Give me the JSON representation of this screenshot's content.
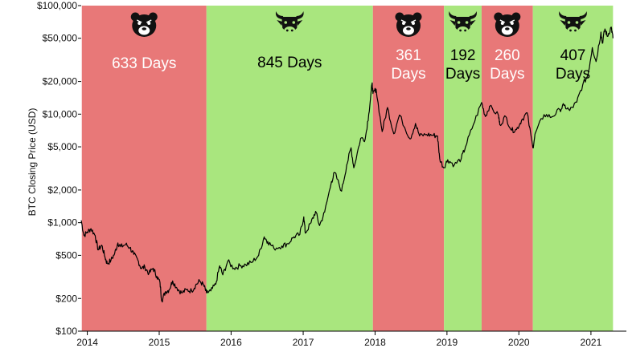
{
  "chart_data": {
    "type": "line",
    "title": "",
    "xlabel": "",
    "ylabel": "BTC Closing Price (USD)",
    "y_scale": "log",
    "ylim": [
      100,
      100000
    ],
    "xlim": [
      "2013-12-01",
      "2021-06-30"
    ],
    "y_ticks": [
      {
        "value": 100,
        "label": "$100"
      },
      {
        "value": 200,
        "label": "$200"
      },
      {
        "value": 500,
        "label": "$500"
      },
      {
        "value": 1000,
        "label": "$1,000"
      },
      {
        "value": 2000,
        "label": "$2,000"
      },
      {
        "value": 5000,
        "label": "$5,000"
      },
      {
        "value": 10000,
        "label": "$10,000"
      },
      {
        "value": 20000,
        "label": "$20,000"
      },
      {
        "value": 50000,
        "label": "$50,000"
      },
      {
        "value": 100000,
        "label": "$100,000"
      }
    ],
    "x_ticks": [
      {
        "date": "2014-01-01",
        "label": "2014"
      },
      {
        "date": "2015-01-01",
        "label": "2015"
      },
      {
        "date": "2016-01-01",
        "label": "2016"
      },
      {
        "date": "2017-01-01",
        "label": "2017"
      },
      {
        "date": "2018-01-01",
        "label": "2018"
      },
      {
        "date": "2019-01-01",
        "label": "2019"
      },
      {
        "date": "2020-01-01",
        "label": "2020"
      },
      {
        "date": "2021-01-01",
        "label": "2021"
      }
    ],
    "phases": [
      {
        "kind": "bear",
        "start": "2013-12-04",
        "end": "2015-08-29",
        "label_lines": [
          "633 Days"
        ],
        "color": "#e87878",
        "icon": "bear-face-icon"
      },
      {
        "kind": "bull",
        "start": "2015-08-29",
        "end": "2017-12-21",
        "label_lines": [
          "845 Days"
        ],
        "color": "#a9e67e",
        "icon": "bull-head-icon"
      },
      {
        "kind": "bear",
        "start": "2017-12-21",
        "end": "2018-12-17",
        "label_lines": [
          "361",
          "Days"
        ],
        "color": "#e87878",
        "icon": "bear-face-icon"
      },
      {
        "kind": "bull",
        "start": "2018-12-17",
        "end": "2019-06-26",
        "label_lines": [
          "192",
          "Days"
        ],
        "color": "#a9e67e",
        "icon": "bull-head-icon"
      },
      {
        "kind": "bear",
        "start": "2019-06-26",
        "end": "2020-03-12",
        "label_lines": [
          "260",
          "Days"
        ],
        "color": "#e87878",
        "icon": "bear-face-icon"
      },
      {
        "kind": "bull",
        "start": "2020-03-12",
        "end": "2021-04-23",
        "label_lines": [
          "407",
          "Days"
        ],
        "color": "#a9e67e",
        "icon": "bull-head-icon"
      }
    ],
    "series": [
      {
        "line_color": "#000000",
        "points": [
          [
            "2013-12-01",
            1050
          ],
          [
            "2013-12-15",
            760
          ],
          [
            "2014-01-01",
            820
          ],
          [
            "2014-01-20",
            880
          ],
          [
            "2014-02-10",
            760
          ],
          [
            "2014-02-25",
            560
          ],
          [
            "2014-03-15",
            620
          ],
          [
            "2014-04-01",
            480
          ],
          [
            "2014-04-12",
            420
          ],
          [
            "2014-05-01",
            450
          ],
          [
            "2014-05-20",
            520
          ],
          [
            "2014-06-05",
            650
          ],
          [
            "2014-06-20",
            600
          ],
          [
            "2014-07-15",
            630
          ],
          [
            "2014-08-05",
            590
          ],
          [
            "2014-08-25",
            510
          ],
          [
            "2014-09-15",
            450
          ],
          [
            "2014-10-01",
            380
          ],
          [
            "2014-10-20",
            390
          ],
          [
            "2014-11-10",
            340
          ],
          [
            "2014-12-01",
            380
          ],
          [
            "2014-12-20",
            320
          ],
          [
            "2015-01-05",
            280
          ],
          [
            "2015-01-14",
            190
          ],
          [
            "2015-02-01",
            230
          ],
          [
            "2015-02-20",
            240
          ],
          [
            "2015-03-10",
            290
          ],
          [
            "2015-04-01",
            250
          ],
          [
            "2015-04-25",
            225
          ],
          [
            "2015-05-20",
            240
          ],
          [
            "2015-06-15",
            235
          ],
          [
            "2015-07-05",
            265
          ],
          [
            "2015-07-25",
            290
          ],
          [
            "2015-08-15",
            265
          ],
          [
            "2015-08-29",
            225
          ],
          [
            "2015-09-20",
            235
          ],
          [
            "2015-10-15",
            270
          ],
          [
            "2015-11-04",
            400
          ],
          [
            "2015-11-20",
            330
          ],
          [
            "2015-12-15",
            440
          ],
          [
            "2016-01-15",
            380
          ],
          [
            "2016-02-15",
            400
          ],
          [
            "2016-03-15",
            410
          ],
          [
            "2016-04-15",
            430
          ],
          [
            "2016-05-20",
            500
          ],
          [
            "2016-06-17",
            740
          ],
          [
            "2016-07-05",
            670
          ],
          [
            "2016-08-05",
            580
          ],
          [
            "2016-09-15",
            610
          ],
          [
            "2016-10-15",
            640
          ],
          [
            "2016-11-15",
            740
          ],
          [
            "2016-12-15",
            780
          ],
          [
            "2017-01-04",
            1130
          ],
          [
            "2017-01-12",
            800
          ],
          [
            "2017-02-10",
            1000
          ],
          [
            "2017-03-05",
            1270
          ],
          [
            "2017-03-25",
            940
          ],
          [
            "2017-04-20",
            1250
          ],
          [
            "2017-05-25",
            2400
          ],
          [
            "2017-06-10",
            2900
          ],
          [
            "2017-07-15",
            1950
          ],
          [
            "2017-08-10",
            3400
          ],
          [
            "2017-09-01",
            4900
          ],
          [
            "2017-09-15",
            3200
          ],
          [
            "2017-10-20",
            6000
          ],
          [
            "2017-11-12",
            5900
          ],
          [
            "2017-11-30",
            10000
          ],
          [
            "2017-12-17",
            19300
          ],
          [
            "2017-12-21",
            15500
          ],
          [
            "2018-01-06",
            17000
          ],
          [
            "2018-02-06",
            6900
          ],
          [
            "2018-03-05",
            11500
          ],
          [
            "2018-04-06",
            6600
          ],
          [
            "2018-05-05",
            9800
          ],
          [
            "2018-06-28",
            5900
          ],
          [
            "2018-07-25",
            8200
          ],
          [
            "2018-08-15",
            6300
          ],
          [
            "2018-09-20",
            6500
          ],
          [
            "2018-10-20",
            6400
          ],
          [
            "2018-11-14",
            6300
          ],
          [
            "2018-11-25",
            3900
          ],
          [
            "2018-12-15",
            3200
          ],
          [
            "2019-01-05",
            3800
          ],
          [
            "2019-02-07",
            3400
          ],
          [
            "2019-03-15",
            3900
          ],
          [
            "2019-04-05",
            5000
          ],
          [
            "2019-05-15",
            8000
          ],
          [
            "2019-06-26",
            12800
          ],
          [
            "2019-07-15",
            9500
          ],
          [
            "2019-08-05",
            11800
          ],
          [
            "2019-09-20",
            9700
          ],
          [
            "2019-09-26",
            8000
          ],
          [
            "2019-10-26",
            9500
          ],
          [
            "2019-11-25",
            7100
          ],
          [
            "2019-12-20",
            7200
          ],
          [
            "2020-01-15",
            8800
          ],
          [
            "2020-02-12",
            10300
          ],
          [
            "2020-03-12",
            4900
          ],
          [
            "2020-03-25",
            6700
          ],
          [
            "2020-05-08",
            9900
          ],
          [
            "2020-06-15",
            9400
          ],
          [
            "2020-07-27",
            11000
          ],
          [
            "2020-08-17",
            12000
          ],
          [
            "2020-09-15",
            10800
          ],
          [
            "2020-10-21",
            12900
          ],
          [
            "2020-11-20",
            18500
          ],
          [
            "2020-12-17",
            23000
          ],
          [
            "2021-01-08",
            41000
          ],
          [
            "2021-01-27",
            30500
          ],
          [
            "2021-02-21",
            57000
          ],
          [
            "2021-02-28",
            45000
          ],
          [
            "2021-03-13",
            61000
          ],
          [
            "2021-03-25",
            52000
          ],
          [
            "2021-04-14",
            63500
          ],
          [
            "2021-04-23",
            50000
          ]
        ]
      }
    ],
    "grid": false
  }
}
